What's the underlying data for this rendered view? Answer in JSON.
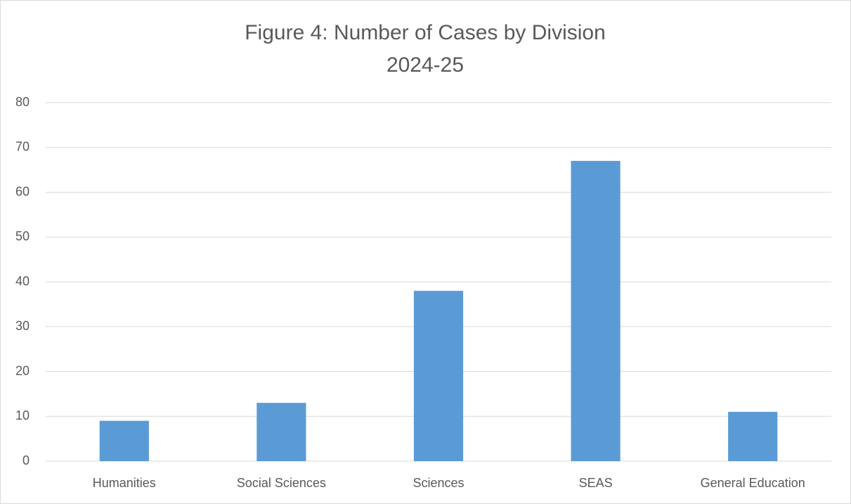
{
  "chart_data": {
    "type": "bar",
    "title": "Figure 4: Number of Cases by Division",
    "subtitle": "2024-25",
    "categories": [
      "Humanities",
      "Social Sciences",
      "Sciences",
      "SEAS",
      "General Education"
    ],
    "values": [
      9,
      13,
      38,
      67,
      11
    ],
    "color": "#5b9bd5",
    "ylim": [
      0,
      80
    ],
    "yticks": [
      0,
      10,
      20,
      30,
      40,
      50,
      60,
      70,
      80
    ],
    "grid": true
  }
}
